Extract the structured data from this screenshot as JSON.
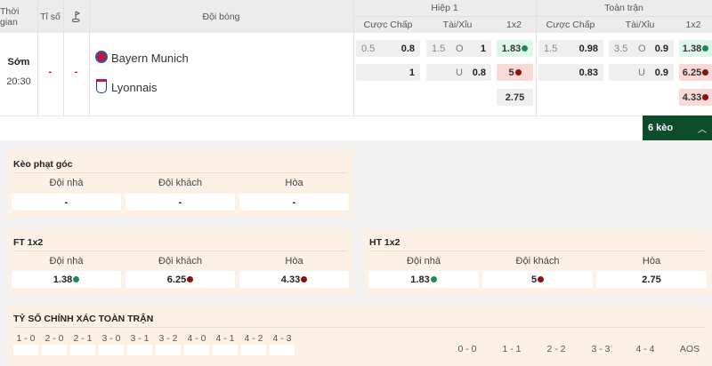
{
  "header": {
    "time": "Thời gian",
    "score": "Tỉ số",
    "corner_icon": "flag-icon",
    "teams": "Đội bóng",
    "half1": "Hiệp 1",
    "fulltime": "Toàn trận",
    "handicap": "Cược Chấp",
    "ou": "Tài/Xỉu",
    "x12": "1x2"
  },
  "match": {
    "status": "Sớm",
    "time": "20:30",
    "score1": "-",
    "score2": "-",
    "home": "Bayern Munich",
    "away": "Lyonnais"
  },
  "h1": {
    "hc_line": "0.5",
    "hc_home": "0.8",
    "hc_away": "1",
    "ou_line": "1.5",
    "ou_o": "O",
    "ou_o_val": "1",
    "ou_u": "U",
    "ou_u_val": "0.8",
    "x_home": "1.83",
    "x_away": "5",
    "x_draw": "2.75"
  },
  "ft": {
    "hc_line": "1.5",
    "hc_home": "0.98",
    "hc_away": "0.83",
    "ou_line": "3.5",
    "ou_o": "O",
    "ou_o_val": "0.9",
    "ou_u": "U",
    "ou_u_val": "0.9",
    "x_home": "1.38",
    "x_away": "6.25",
    "x_draw": "4.33"
  },
  "more_button": "6 kèo",
  "corner": {
    "title": "Kèo phạt góc",
    "home": "Đội nhà",
    "away": "Đội khách",
    "draw": "Hòa",
    "v_home": "-",
    "v_away": "-",
    "v_draw": "-"
  },
  "ft1x2": {
    "title": "FT 1x2",
    "home": "Đội nhà",
    "away": "Đội khách",
    "draw": "Hòa",
    "v_home": "1.38",
    "v_away": "6.25",
    "v_draw": "4.33"
  },
  "ht1x2": {
    "title": "HT 1x2",
    "home": "Đội nhà",
    "away": "Đội khách",
    "draw": "Hòa",
    "v_home": "1.83",
    "v_away": "5",
    "v_draw": "2.75"
  },
  "exact": {
    "title": "TỶ SỐ CHÍNH XÁC TOÀN TRẬN",
    "home_scores": [
      "1 - 0",
      "2 - 0",
      "2 - 1",
      "3 - 0",
      "3 - 1",
      "3 - 2",
      "4 - 0",
      "4 - 1",
      "4 - 2",
      "4 - 3"
    ],
    "draw_scores": [
      "0 - 0",
      "1 - 1",
      "2 - 2",
      "3 - 3",
      "4 - 4",
      "AOS"
    ]
  },
  "colors": {
    "accent_green": "#0d4d2c",
    "up": "#1e8a5a",
    "down": "#8b1010"
  }
}
